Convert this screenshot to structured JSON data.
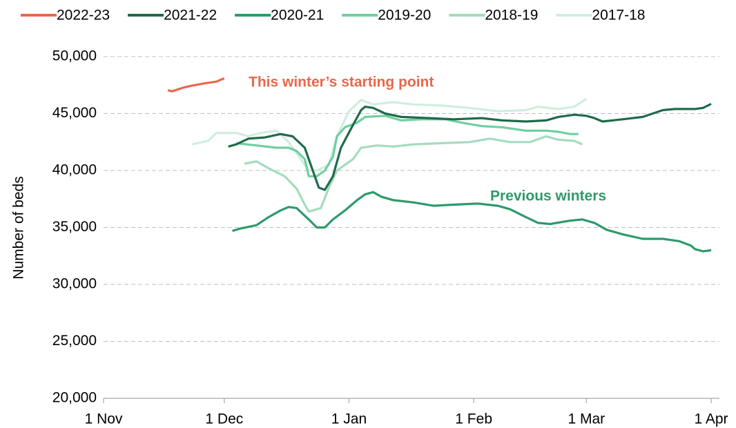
{
  "chart_data": {
    "type": "line",
    "y_label": "Number of beds",
    "xlim": [
      0,
      151
    ],
    "xticks": [
      {
        "value": 0,
        "label": "1 Nov"
      },
      {
        "value": 30,
        "label": "1 Dec"
      },
      {
        "value": 61,
        "label": "1 Jan"
      },
      {
        "value": 92,
        "label": "1 Feb"
      },
      {
        "value": 120,
        "label": "1 Mar"
      },
      {
        "value": 151,
        "label": "1 Apr"
      }
    ],
    "ylim": [
      20000,
      50000
    ],
    "yticks": [
      {
        "value": 20000,
        "label": "20,000"
      },
      {
        "value": 25000,
        "label": "25,000"
      },
      {
        "value": 30000,
        "label": "30,000"
      },
      {
        "value": 35000,
        "label": "35,000"
      },
      {
        "value": 40000,
        "label": "40,000"
      },
      {
        "value": 45000,
        "label": "45,000"
      },
      {
        "value": 50000,
        "label": "50,000"
      }
    ],
    "grid": true,
    "legend": "top",
    "annotations": [
      {
        "text": "This winter’s starting point",
        "color": "#e8684a"
      },
      {
        "text": "Previous winters",
        "color": "#2d9a6a"
      }
    ],
    "series": [
      {
        "name": "2022-23",
        "color": "#e8684a",
        "x": [
          16,
          17,
          20,
          22,
          25,
          28,
          30
        ],
        "values": [
          47050,
          46950,
          47300,
          47450,
          47650,
          47800,
          48100
        ]
      },
      {
        "name": "2021-22",
        "color": "#1e6b4a",
        "x": [
          31,
          33,
          36,
          40,
          44,
          47,
          50,
          52,
          53.5,
          55,
          57,
          59,
          62,
          64,
          65,
          67,
          70,
          74,
          81,
          87,
          94,
          99,
          105,
          110,
          113,
          117,
          120,
          122,
          124,
          129,
          134,
          139,
          142,
          147,
          149,
          151
        ],
        "values": [
          42100,
          42300,
          42800,
          42900,
          43200,
          43000,
          42000,
          40000,
          38500,
          38300,
          39500,
          42000,
          44000,
          45300,
          45600,
          45500,
          45000,
          44700,
          44600,
          44500,
          44600,
          44400,
          44300,
          44400,
          44700,
          44900,
          44800,
          44600,
          44300,
          44500,
          44700,
          45300,
          45400,
          45400,
          45500,
          45850
        ]
      },
      {
        "name": "2020-21",
        "color": "#2d9a6a",
        "x": [
          32,
          34,
          38,
          41,
          44,
          46,
          48,
          51,
          53,
          55,
          57,
          60,
          63,
          65,
          67,
          69,
          72,
          77,
          82,
          87,
          93,
          98,
          101,
          105,
          108,
          111,
          116,
          119,
          122,
          125,
          129,
          134,
          139,
          143,
          146,
          147,
          149,
          151
        ],
        "values": [
          34700,
          34900,
          35200,
          35900,
          36500,
          36800,
          36700,
          35700,
          35000,
          35000,
          35700,
          36500,
          37400,
          37900,
          38100,
          37700,
          37400,
          37200,
          36900,
          37000,
          37100,
          36900,
          36600,
          35900,
          35400,
          35300,
          35600,
          35700,
          35400,
          34800,
          34400,
          34000,
          34000,
          33800,
          33400,
          33100,
          32900,
          33000
        ]
      },
      {
        "name": "2019-20",
        "color": "#6fcf9f",
        "x": [
          33,
          38,
          43,
          46,
          48,
          50,
          51,
          53,
          55,
          57,
          58,
          60,
          63,
          65,
          70,
          74,
          79,
          85,
          89,
          94,
          99,
          105,
          110,
          113,
          116,
          118
        ],
        "values": [
          42400,
          42200,
          42000,
          42000,
          41700,
          41000,
          39500,
          39500,
          40000,
          41200,
          43000,
          43800,
          44200,
          44700,
          44800,
          44400,
          44500,
          44500,
          44200,
          43900,
          43800,
          43500,
          43500,
          43400,
          43200,
          43200
        ]
      },
      {
        "name": "2018-19",
        "color": "#a3dcbe",
        "x": [
          35,
          38,
          41,
          45,
          48,
          50,
          51,
          54,
          56,
          58,
          62,
          64,
          68,
          72,
          77,
          84,
          91,
          96,
          101,
          106,
          110,
          113,
          117,
          119
        ],
        "values": [
          40600,
          40800,
          40200,
          39500,
          38400,
          37000,
          36400,
          36700,
          38500,
          40000,
          41000,
          42000,
          42200,
          42100,
          42300,
          42400,
          42500,
          42800,
          42500,
          42500,
          43000,
          42700,
          42600,
          42300
        ]
      },
      {
        "name": "2017-18",
        "color": "#cfeede",
        "x": [
          22,
          26,
          28,
          33,
          36,
          39,
          43,
          46,
          49,
          51,
          53,
          56,
          58,
          61,
          64,
          67,
          72,
          77,
          84,
          91,
          98,
          105,
          108,
          113,
          117,
          120
        ],
        "values": [
          42300,
          42600,
          43300,
          43300,
          43000,
          43300,
          43500,
          42500,
          41000,
          40000,
          40000,
          40500,
          43000,
          45200,
          46200,
          45800,
          46000,
          45800,
          45700,
          45500,
          45200,
          45300,
          45600,
          45400,
          45600,
          46300
        ]
      }
    ]
  }
}
